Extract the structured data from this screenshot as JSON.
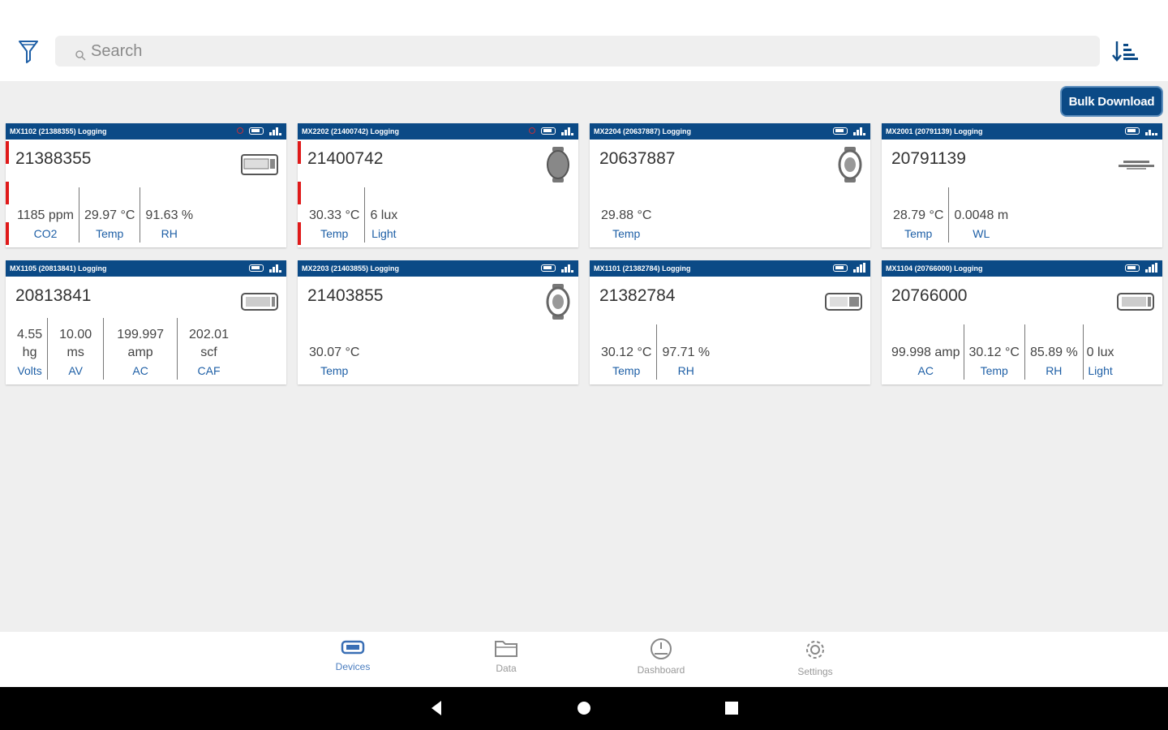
{
  "search": {
    "placeholder": "Search"
  },
  "toolbar": {
    "bulk_download_label": "Bulk Download"
  },
  "cards": [
    {
      "header": "MX1102 (21388355) Logging",
      "serial": "21388355",
      "readings": [
        {
          "value": "1185 ppm",
          "label": "CO2"
        },
        {
          "value": "29.97 °C",
          "label": "Temp"
        },
        {
          "value": "91.63 %",
          "label": "RH"
        }
      ]
    },
    {
      "header": "MX2202 (21400742) Logging",
      "serial": "21400742",
      "readings": [
        {
          "value": "30.33 °C",
          "label": "Temp"
        },
        {
          "value": "6 lux",
          "label": "Light"
        }
      ]
    },
    {
      "header": "MX2204 (20637887) Logging",
      "serial": "20637887",
      "readings": [
        {
          "value": "29.88 °C",
          "label": "Temp"
        }
      ]
    },
    {
      "header": "MX2001 (20791139) Logging",
      "serial": "20791139",
      "readings": [
        {
          "value": "28.79 °C",
          "label": "Temp"
        },
        {
          "value": "0.0048 m",
          "label": "WL"
        }
      ]
    },
    {
      "header": "MX1105 (20813841) Logging",
      "serial": "20813841",
      "readings": [
        {
          "value1": "4.55",
          "value2": "hg",
          "label": "Volts"
        },
        {
          "value1": "10.00",
          "value2": "ms",
          "label": "AV"
        },
        {
          "value1": "199.997",
          "value2": "amp",
          "label": "AC"
        },
        {
          "value1": "202.01",
          "value2": "scf",
          "label": "CAF"
        }
      ]
    },
    {
      "header": "MX2203 (21403855) Logging",
      "serial": "21403855",
      "readings": [
        {
          "value": "30.07 °C",
          "label": "Temp"
        }
      ]
    },
    {
      "header": "MX1101 (21382784) Logging",
      "serial": "21382784",
      "readings": [
        {
          "value": "30.12 °C",
          "label": "Temp"
        },
        {
          "value": "97.71 %",
          "label": "RH"
        }
      ]
    },
    {
      "header": "MX1104 (20766000) Logging",
      "serial": "20766000",
      "readings": [
        {
          "value": "99.998 amp",
          "label": "AC"
        },
        {
          "value": "30.12 °C",
          "label": "Temp"
        },
        {
          "value": "85.89 %",
          "label": "RH"
        },
        {
          "value": "0 lux",
          "label": "Light"
        }
      ]
    }
  ],
  "nav": {
    "devices": "Devices",
    "data": "Data",
    "dashboard": "Dashboard",
    "settings": "Settings"
  },
  "icons": {
    "filter": "filter-icon",
    "sort": "sort-icon",
    "search": "search-icon",
    "logger_box": "logger-box-icon",
    "logger_round": "logger-round-icon",
    "water_level": "water-level-icon"
  },
  "colors": {
    "header_blue": "#0b4a86",
    "label_blue": "#1e5fa6",
    "alarm_red": "#e01a1a",
    "background": "#efefef"
  }
}
